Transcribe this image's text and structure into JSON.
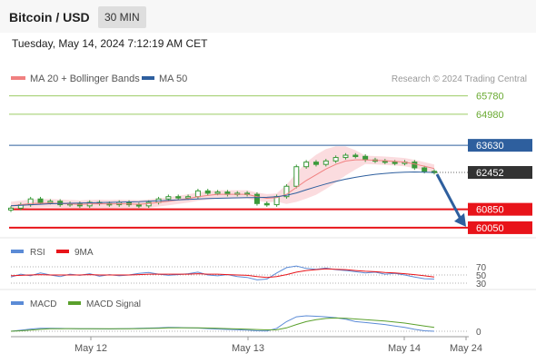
{
  "header": {
    "title": "Bitcoin / USD",
    "interval": "30 MIN",
    "timestamp": "Tuesday, May 14, 2024 7:12:19 AM CET"
  },
  "legend": {
    "ma20": "MA 20 + Bollinger Bands",
    "ma50": "MA 50",
    "copyright": "Research © 2024 Trading Central"
  },
  "colors": {
    "candle": "#3a9a3a",
    "ma20": "#f08080",
    "ma50": "#2e5f9e",
    "bollinger_fill": "#f9d0d4",
    "resistance": "#9ccc65",
    "pivot": "#2e5f9e",
    "support": "#e8141a",
    "price_tag": "#333333",
    "rsi": "#5b8bd6",
    "rsi_ma": "#e8141a",
    "macd": "#5b8bd6",
    "macd_signal": "#5aa02c",
    "arrow": "#2e5f9e"
  },
  "chart_data": [
    {
      "type": "candlestick",
      "title": "Bitcoin / USD",
      "interval": "30 MIN",
      "x_labels": [
        "May 12",
        "May 13",
        "May 14",
        "May 24"
      ],
      "y_scale": {
        "top_value": 66000,
        "bottom_value": 59850
      },
      "levels": [
        {
          "label": "65780",
          "value": 65780,
          "kind": "resistance"
        },
        {
          "label": "64980",
          "value": 64980,
          "kind": "resistance"
        },
        {
          "label": "63630",
          "value": 63630,
          "kind": "pivot"
        },
        {
          "label": "60850",
          "value": 60850,
          "kind": "support"
        },
        {
          "label": "60050",
          "value": 60050,
          "kind": "support"
        }
      ],
      "last_price": {
        "label": "62452",
        "value": 62452
      },
      "close_series": [
        60900,
        61050,
        61300,
        61150,
        61200,
        61050,
        61100,
        61000,
        61150,
        61100,
        61050,
        61150,
        61050,
        61000,
        61150,
        61300,
        61400,
        61350,
        61400,
        61650,
        61550,
        61600,
        61500,
        61550,
        61500,
        61100,
        61050,
        61400,
        61850,
        62700,
        62900,
        62800,
        62950,
        63100,
        63200,
        63150,
        63000,
        62950,
        62900,
        62850,
        62900,
        62650,
        62500,
        62452
      ],
      "ma50_series": [
        61000,
        61020,
        61050,
        61070,
        61090,
        61100,
        61110,
        61120,
        61130,
        61140,
        61150,
        61160,
        61170,
        61180,
        61200,
        61220,
        61240,
        61260,
        61280,
        61300,
        61320,
        61330,
        61340,
        61350,
        61360,
        61360,
        61370,
        61400,
        61460,
        61560,
        61700,
        61830,
        61950,
        62060,
        62160,
        62240,
        62310,
        62370,
        62410,
        62440,
        62460,
        62470,
        62460,
        62450
      ],
      "ma20_series": [
        61000,
        61050,
        61100,
        61110,
        61120,
        61100,
        61080,
        61060,
        61080,
        61090,
        61080,
        61090,
        61080,
        61070,
        61100,
        61150,
        61200,
        61260,
        61320,
        61400,
        61450,
        61500,
        61500,
        61500,
        61500,
        61400,
        61330,
        61360,
        61500,
        61800,
        62100,
        62350,
        62600,
        62800,
        62950,
        63000,
        63000,
        62980,
        62960,
        62930,
        62900,
        62820,
        62720,
        62620
      ],
      "projection": {
        "from": 62452,
        "to": 60050
      }
    },
    {
      "type": "line",
      "name": "RSI",
      "legend": [
        "RSI",
        "9MA"
      ],
      "reference_levels": [
        "70",
        "50",
        "30"
      ],
      "rsi_series": [
        45,
        52,
        48,
        55,
        50,
        46,
        52,
        49,
        53,
        47,
        51,
        48,
        50,
        54,
        56,
        52,
        49,
        51,
        53,
        57,
        50,
        48,
        51,
        46,
        44,
        38,
        40,
        55,
        68,
        72,
        66,
        64,
        67,
        63,
        61,
        58,
        55,
        57,
        52,
        54,
        50,
        45,
        41,
        40
      ],
      "ma_series": [
        48,
        49,
        50,
        51,
        50,
        50,
        50,
        50,
        51,
        50,
        50,
        50,
        50,
        51,
        52,
        52,
        52,
        52,
        52,
        53,
        52,
        52,
        51,
        50,
        49,
        46,
        44,
        46,
        51,
        57,
        61,
        63,
        65,
        64,
        63,
        61,
        59,
        58,
        56,
        55,
        53,
        51,
        48,
        45
      ]
    },
    {
      "type": "line",
      "name": "MACD",
      "legend": [
        "MACD",
        "MACD Signal"
      ],
      "reference_levels": [
        "0"
      ],
      "macd_series": [
        0,
        20,
        45,
        60,
        62,
        58,
        55,
        52,
        50,
        48,
        47,
        50,
        55,
        60,
        65,
        72,
        80,
        78,
        72,
        65,
        55,
        45,
        38,
        30,
        22,
        10,
        5,
        60,
        200,
        300,
        320,
        310,
        300,
        280,
        250,
        200,
        180,
        160,
        140,
        110,
        80,
        40,
        10,
        0
      ],
      "signal_series": [
        0,
        10,
        25,
        40,
        50,
        53,
        54,
        53,
        52,
        51,
        50,
        50,
        52,
        55,
        58,
        63,
        69,
        72,
        72,
        70,
        66,
        60,
        54,
        48,
        42,
        35,
        28,
        30,
        70,
        140,
        200,
        240,
        265,
        275,
        270,
        255,
        240,
        225,
        210,
        190,
        170,
        140,
        110,
        80
      ]
    }
  ]
}
